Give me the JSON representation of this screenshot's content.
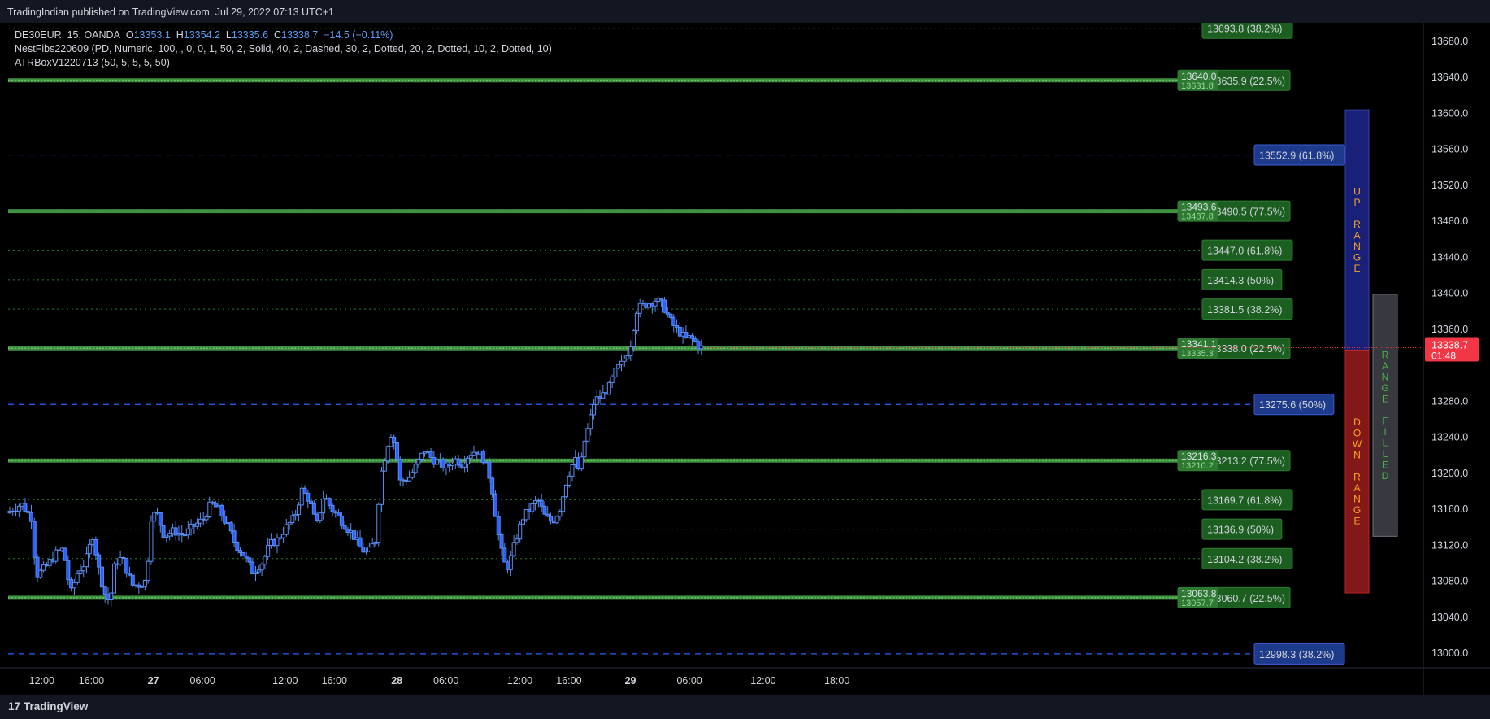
{
  "header": {
    "publisher_line": "TradingIndian published on TradingView.com, Jul 29, 2022 07:13 UTC+1"
  },
  "footer": {
    "logo_text": "TradingView",
    "logo_mark": "17"
  },
  "legend": {
    "symbol_line": "DE30EUR, 15, OANDA",
    "open_label": "O",
    "open": "13353.1",
    "high_label": "H",
    "high": "13354.2",
    "low_label": "L",
    "low": "13335.6",
    "close_label": "C",
    "close": "13338.7",
    "change": "−14.5 (−0.11%)",
    "indicator_1": "NestFibs220609 (PD, Numeric, 100, , 0, 0, 1, 50, 2, Solid, 40, 2, Dashed, 30, 2, Dotted, 20, 2, Dotted, 10, 2, Dotted, 10)",
    "indicator_2": "ATRBoxV1220713 (50, 5, 5, 5, 50)"
  },
  "colors": {
    "background": "#000000",
    "panel": "#131722",
    "candle": "#2962ff",
    "green_level": "#4caf50",
    "green_label": "#1b5e20",
    "blue_level": "#2962ff",
    "blue_label": "#1e3a8a",
    "price_tag": "#f23645",
    "up_box": "#1a237e",
    "down_box": "#8b1a1a",
    "filled_box": "#3a3d42"
  },
  "chart_data": {
    "type": "candlestick",
    "symbol": "DE30EUR",
    "timeframe": "15",
    "y_range": [
      12970,
      13705
    ],
    "y_ticks": [
      "13680.0",
      "13640.0",
      "13600.0",
      "13560.0",
      "13520.0",
      "13480.0",
      "13440.0",
      "13400.0",
      "13360.0",
      "13280.0",
      "13240.0",
      "13200.0",
      "13160.0",
      "13120.0",
      "13080.0",
      "13040.0",
      "13000.0"
    ],
    "x_ticks": [
      {
        "label": "12:00",
        "bold": false,
        "t": 0.65
      },
      {
        "label": "16:00",
        "bold": false,
        "t": 1.66
      },
      {
        "label": "27",
        "bold": true,
        "t": 2.92
      },
      {
        "label": "06:00",
        "bold": false,
        "t": 3.92
      },
      {
        "label": "12:00",
        "bold": false,
        "t": 5.6
      },
      {
        "label": "16:00",
        "bold": false,
        "t": 6.6
      },
      {
        "label": "28",
        "bold": true,
        "t": 7.87
      },
      {
        "label": "06:00",
        "bold": false,
        "t": 8.87
      },
      {
        "label": "12:00",
        "bold": false,
        "t": 10.37
      },
      {
        "label": "16:00",
        "bold": false,
        "t": 11.37
      },
      {
        "label": "29",
        "bold": true,
        "t": 12.62
      },
      {
        "label": "06:00",
        "bold": false,
        "t": 13.82
      },
      {
        "label": "12:00",
        "bold": false,
        "t": 15.32
      },
      {
        "label": "18:00",
        "bold": false,
        "t": 16.82
      }
    ],
    "price_path": [
      [
        0.0,
        13155
      ],
      [
        0.3,
        13165
      ],
      [
        0.5,
        13150
      ],
      [
        0.6,
        13085
      ],
      [
        0.8,
        13095
      ],
      [
        1.0,
        13110
      ],
      [
        1.15,
        13115
      ],
      [
        1.3,
        13065
      ],
      [
        1.45,
        13090
      ],
      [
        1.6,
        13100
      ],
      [
        1.75,
        13130
      ],
      [
        1.9,
        13085
      ],
      [
        2.0,
        13065
      ],
      [
        2.1,
        13055
      ],
      [
        2.2,
        13100
      ],
      [
        2.35,
        13105
      ],
      [
        2.45,
        13090
      ],
      [
        2.55,
        13075
      ],
      [
        2.7,
        13075
      ],
      [
        2.85,
        13080
      ],
      [
        2.92,
        13150
      ],
      [
        3.05,
        13155
      ],
      [
        3.2,
        13130
      ],
      [
        3.4,
        13135
      ],
      [
        3.6,
        13130
      ],
      [
        3.8,
        13140
      ],
      [
        4.0,
        13148
      ],
      [
        4.15,
        13165
      ],
      [
        4.3,
        13160
      ],
      [
        4.5,
        13140
      ],
      [
        4.65,
        13120
      ],
      [
        4.8,
        13110
      ],
      [
        5.0,
        13090
      ],
      [
        5.2,
        13100
      ],
      [
        5.35,
        13120
      ],
      [
        5.5,
        13125
      ],
      [
        5.7,
        13140
      ],
      [
        5.85,
        13150
      ],
      [
        6.0,
        13180
      ],
      [
        6.15,
        13170
      ],
      [
        6.3,
        13140
      ],
      [
        6.45,
        13175
      ],
      [
        6.6,
        13160
      ],
      [
        6.75,
        13150
      ],
      [
        6.9,
        13140
      ],
      [
        7.05,
        13130
      ],
      [
        7.2,
        13115
      ],
      [
        7.35,
        13110
      ],
      [
        7.5,
        13125
      ],
      [
        7.6,
        13195
      ],
      [
        7.7,
        13220
      ],
      [
        7.8,
        13245
      ],
      [
        7.9,
        13230
      ],
      [
        8.0,
        13190
      ],
      [
        8.2,
        13195
      ],
      [
        8.35,
        13210
      ],
      [
        8.5,
        13225
      ],
      [
        8.65,
        13215
      ],
      [
        8.8,
        13210
      ],
      [
        8.95,
        13205
      ],
      [
        9.1,
        13215
      ],
      [
        9.25,
        13210
      ],
      [
        9.4,
        13220
      ],
      [
        9.55,
        13225
      ],
      [
        9.7,
        13215
      ],
      [
        9.85,
        13190
      ],
      [
        10.0,
        13130
      ],
      [
        10.1,
        13100
      ],
      [
        10.2,
        13095
      ],
      [
        10.35,
        13125
      ],
      [
        10.5,
        13150
      ],
      [
        10.65,
        13160
      ],
      [
        10.8,
        13170
      ],
      [
        10.95,
        13150
      ],
      [
        11.1,
        13145
      ],
      [
        11.25,
        13160
      ],
      [
        11.4,
        13195
      ],
      [
        11.55,
        13215
      ],
      [
        11.65,
        13200
      ],
      [
        11.75,
        13235
      ],
      [
        11.85,
        13255
      ],
      [
        11.95,
        13280
      ],
      [
        12.1,
        13285
      ],
      [
        12.25,
        13295
      ],
      [
        12.4,
        13315
      ],
      [
        12.5,
        13320
      ],
      [
        12.6,
        13330
      ],
      [
        12.7,
        13345
      ],
      [
        12.8,
        13380
      ],
      [
        12.9,
        13385
      ],
      [
        13.05,
        13388
      ],
      [
        13.2,
        13392
      ],
      [
        13.35,
        13385
      ],
      [
        13.5,
        13368
      ],
      [
        13.6,
        13360
      ],
      [
        13.7,
        13355
      ],
      [
        13.8,
        13348
      ],
      [
        13.9,
        13350
      ],
      [
        14.0,
        13345
      ],
      [
        14.1,
        13338.7
      ]
    ],
    "fib_levels": [
      {
        "value": 13693.8,
        "style": "dotted",
        "color": "green",
        "label": "13693.8 (38.2%)"
      },
      {
        "value": 13635.9,
        "style": "solid",
        "color": "green",
        "label": "13635.9 (22.5%)",
        "extra_tags": [
          "13640.0",
          "13631.8"
        ]
      },
      {
        "value": 13552.9,
        "style": "dashed",
        "color": "blue",
        "label": "13552.9 (61.8%)"
      },
      {
        "value": 13490.5,
        "style": "solid",
        "color": "green",
        "label": "13490.5 (77.5%)",
        "extra_tags": [
          "13493.6",
          "13487.8"
        ]
      },
      {
        "value": 13447.0,
        "style": "dotted",
        "color": "green",
        "label": "13447.0 (61.8%)"
      },
      {
        "value": 13414.3,
        "style": "dotted",
        "color": "green",
        "label": "13414.3 (50%)"
      },
      {
        "value": 13381.5,
        "style": "dotted",
        "color": "green",
        "label": "13381.5 (38.2%)"
      },
      {
        "value": 13338.0,
        "style": "solid",
        "color": "green",
        "label": "13338.0 (22.5%)",
        "extra_tags": [
          "13341.1",
          "13335.3"
        ]
      },
      {
        "value": 13275.6,
        "style": "dashed",
        "color": "blue",
        "label": "13275.6 (50%)"
      },
      {
        "value": 13213.2,
        "style": "solid",
        "color": "green",
        "label": "13213.2 (77.5%)",
        "extra_tags": [
          "13216.3",
          "13210.2"
        ]
      },
      {
        "value": 13169.7,
        "style": "dotted",
        "color": "green",
        "label": "13169.7 (61.8%)"
      },
      {
        "value": 13136.9,
        "style": "dotted",
        "color": "green",
        "label": "13136.9 (50%)"
      },
      {
        "value": 13104.2,
        "style": "dotted",
        "color": "green",
        "label": "13104.2 (38.2%)"
      },
      {
        "value": 13060.7,
        "style": "solid",
        "color": "green",
        "label": "13060.7 (22.5%)",
        "extra_tags": [
          "13063.8",
          "13057.7"
        ]
      },
      {
        "value": 12998.3,
        "style": "dashed",
        "color": "blue",
        "label": "12998.3 (38.2%)"
      }
    ],
    "last_price": {
      "value": 13338.7,
      "label": "13338.7",
      "countdown": "01:48"
    },
    "atr_boxes": [
      {
        "text": "UP RANGE",
        "top": 13603,
        "bottom": 13336,
        "color": "up"
      },
      {
        "text": "DOWN RANGE",
        "top": 13336,
        "bottom": 13066,
        "color": "down"
      },
      {
        "text": "RANGE FILLED",
        "top": 13398,
        "bottom": 13129,
        "color": "filled"
      }
    ]
  }
}
